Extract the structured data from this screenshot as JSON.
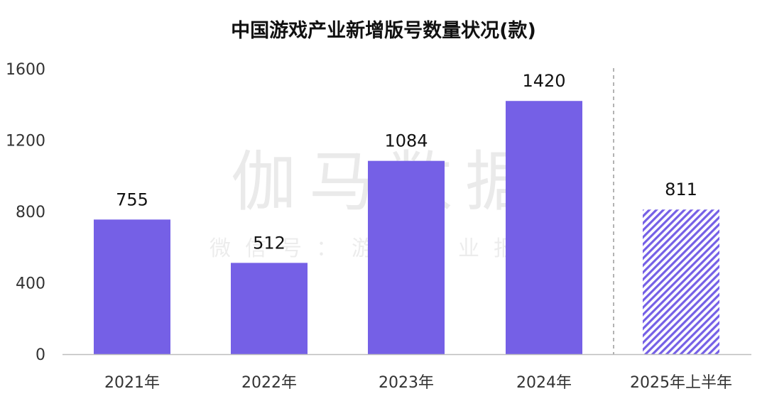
{
  "chart_data": {
    "type": "bar",
    "title": "中国游戏产业新增版号数量状况(款)",
    "categories": [
      "2021年",
      "2022年",
      "2023年",
      "2024年",
      "2025年上半年"
    ],
    "values": [
      755,
      512,
      1084,
      1420,
      811
    ],
    "data_labels": [
      "755",
      "512",
      "1084",
      "1420",
      "811"
    ],
    "ylim": [
      0,
      1600
    ],
    "yticks": [
      "0",
      "400",
      "800",
      "1200",
      "1600"
    ],
    "xlabel": "",
    "ylabel": "",
    "grid": false,
    "legend": "none",
    "bar_color": "#7560e6",
    "highlight_last_hatched": true,
    "dashed_separator_before_last": true
  },
  "watermark": {
    "main": "伽马数据",
    "sub": "微信号：游戏产业报告"
  }
}
